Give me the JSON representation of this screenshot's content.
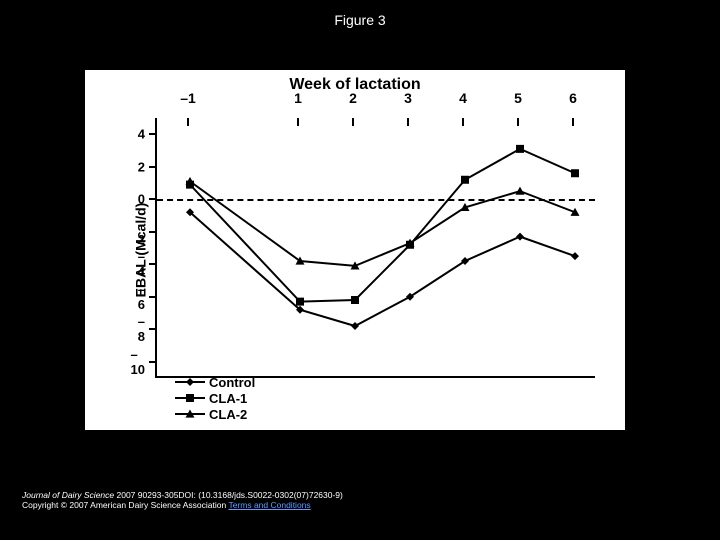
{
  "figure_title": "Figure 3",
  "chart": {
    "type": "line",
    "title": "Week of lactation",
    "ylabel": "EBAL (Mcal/d)",
    "background_color": "#ffffff",
    "page_background": "#000000",
    "line_color": "#000000",
    "line_width": 2,
    "xlim": [
      -1.6,
      6.4
    ],
    "ylim": [
      -11,
      5
    ],
    "xticks": [
      -1,
      1,
      2,
      3,
      4,
      5,
      6
    ],
    "xticklabels": [
      "–1",
      "1",
      "2",
      "3",
      "4",
      "5",
      "6"
    ],
    "yticks": [
      -10,
      -8,
      -6,
      -4,
      -2,
      0,
      2,
      4
    ],
    "yticklabels": [
      "–10",
      "–8",
      "–6",
      "–4",
      "–2",
      "0",
      "2",
      "4"
    ],
    "zero_y": 0,
    "series": [
      {
        "name": "Control",
        "marker": "diamond",
        "marker_size": 8,
        "x": [
          -1,
          1,
          2,
          3,
          4,
          5,
          6
        ],
        "y": [
          -0.8,
          -6.8,
          -7.8,
          -6.0,
          -3.8,
          -2.3,
          -3.5
        ]
      },
      {
        "name": "CLA-1",
        "marker": "square",
        "marker_size": 8,
        "x": [
          -1,
          1,
          2,
          3,
          4,
          5,
          6
        ],
        "y": [
          0.9,
          -6.3,
          -6.2,
          -2.8,
          1.2,
          3.1,
          1.6
        ]
      },
      {
        "name": "CLA-2",
        "marker": "triangle",
        "marker_size": 9,
        "x": [
          -1,
          1,
          2,
          3,
          4,
          5,
          6
        ],
        "y": [
          1.1,
          -3.8,
          -4.1,
          -2.7,
          -0.5,
          0.5,
          -0.8
        ]
      }
    ]
  },
  "citation": {
    "journal": "Journal of Dairy Science",
    "ref": " 2007 90293-305DOI: (10.3168/jds.S0022-0302(07)72630-9)",
    "copyright": "Copyright © 2007 American Dairy Science Association ",
    "terms": "Terms and Conditions"
  }
}
